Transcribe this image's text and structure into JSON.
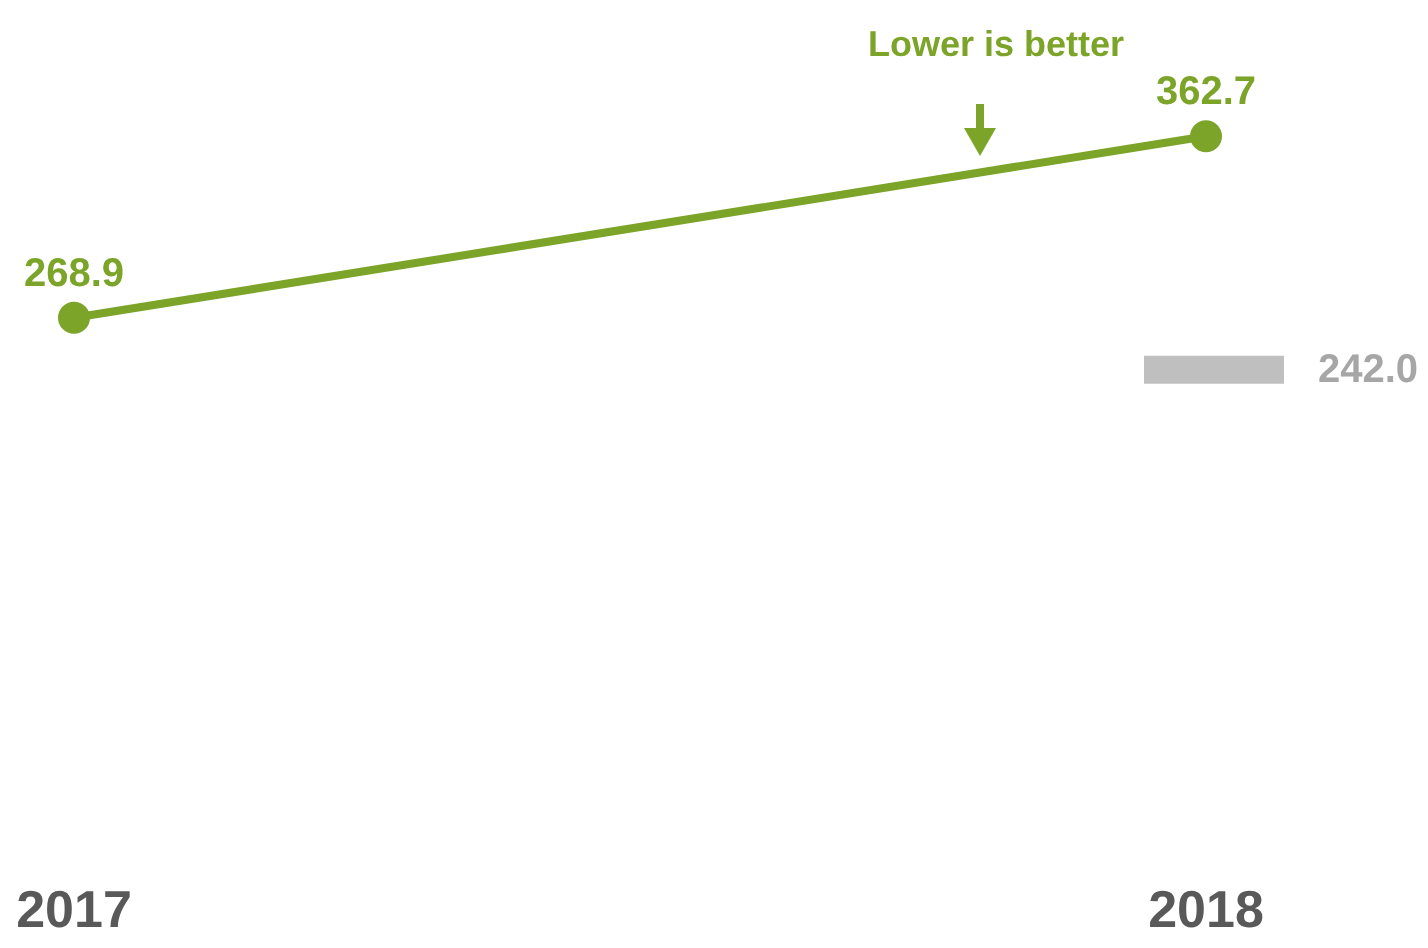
{
  "chart_data": {
    "type": "line",
    "categories": [
      "2017",
      "2018"
    ],
    "tick_labels": "x",
    "data_labels": true,
    "marker": "circle",
    "grid": false,
    "series": [
      {
        "color": "#7ba428",
        "values": [
          268.9,
          362.7
        ]
      }
    ],
    "ref_lines": [
      {
        "axis": "y",
        "value": 242.0,
        "label": "242.0",
        "color": "#bfbfbf"
      }
    ],
    "annotations": [
      "Lower is better"
    ]
  }
}
